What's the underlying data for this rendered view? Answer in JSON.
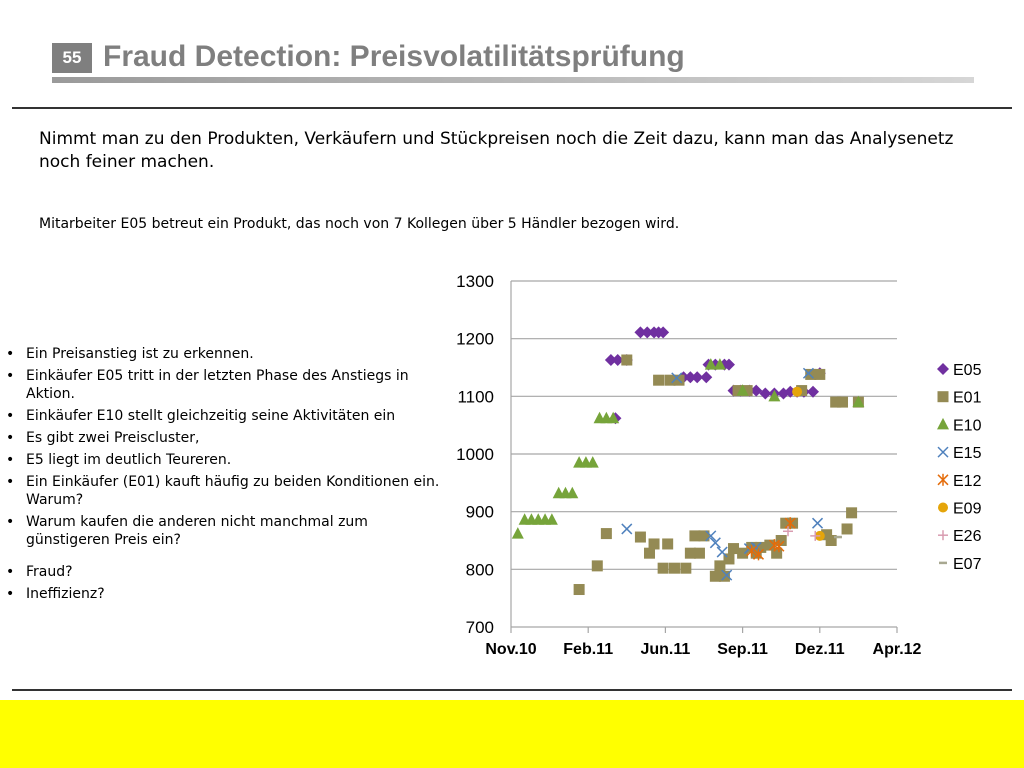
{
  "header": {
    "page_number": "55",
    "title": "Fraud Detection: Preisvolatilitätsprüfung"
  },
  "intro": "Nimmt man zu den Produkten, Verkäufern und Stückpreisen noch die Zeit dazu, kann man das Analysenetz noch feiner machen.",
  "subtext": "Mitarbeiter E05 betreut ein Produkt, das noch von 7 Kollegen über 5 Händler bezogen wird.",
  "bullets": [
    "Ein Preisanstieg ist zu erkennen.",
    "Einkäufer E05 tritt in der letzten Phase des Anstiegs in Aktion.",
    "Einkäufer E10 stellt gleichzeitig seine Aktivitäten ein",
    "Es gibt zwei Preiscluster,",
    "E5 liegt im deutlich Teureren.",
    "Ein Einkäufer (E01) kauft häufig zu beiden Konditionen ein. Warum?",
    "Warum kaufen die anderen nicht manchmal zum günstigeren Preis ein?",
    "Fraud?",
    "Ineffizienz?"
  ],
  "chart_data": {
    "type": "scatter",
    "x_unit": "months since Nov.10",
    "ylim": [
      700,
      1300
    ],
    "yticks": [
      "700",
      "800",
      "900",
      "1000",
      "1100",
      "1200",
      "1300"
    ],
    "xlim": [
      0,
      17
    ],
    "xtick_labels": [
      "Nov.10",
      "Feb.11",
      "Jun.11",
      "Sep.11",
      "Dez.11",
      "Apr.12"
    ],
    "grid": true,
    "legend_position": "right",
    "series": [
      {
        "name": "E05",
        "marker": "diamond",
        "color": "#7030a0",
        "points": [
          [
            4.6,
            1062
          ],
          [
            4.4,
            1163
          ],
          [
            4.7,
            1163
          ],
          [
            5.1,
            1163
          ],
          [
            5.7,
            1211
          ],
          [
            6.0,
            1211
          ],
          [
            6.3,
            1211
          ],
          [
            6.5,
            1211
          ],
          [
            6.7,
            1211
          ],
          [
            7.6,
            1133
          ],
          [
            7.9,
            1133
          ],
          [
            8.2,
            1133
          ],
          [
            8.6,
            1133
          ],
          [
            8.7,
            1155
          ],
          [
            9.0,
            1155
          ],
          [
            9.4,
            1155
          ],
          [
            9.6,
            1155
          ],
          [
            9.8,
            1110
          ],
          [
            10.1,
            1110
          ],
          [
            10.5,
            1110
          ],
          [
            10.8,
            1110
          ],
          [
            11.2,
            1105
          ],
          [
            11.6,
            1105
          ],
          [
            12.0,
            1105
          ],
          [
            12.3,
            1108
          ],
          [
            12.6,
            1108
          ],
          [
            12.9,
            1108
          ],
          [
            13.3,
            1108
          ],
          [
            13.6,
            1140
          ]
        ]
      },
      {
        "name": "E01",
        "marker": "square",
        "color": "#948a54",
        "points": [
          [
            3.0,
            765
          ],
          [
            3.8,
            806
          ],
          [
            4.2,
            862
          ],
          [
            5.1,
            1163
          ],
          [
            5.7,
            856
          ],
          [
            6.1,
            828
          ],
          [
            6.3,
            844
          ],
          [
            6.5,
            1128
          ],
          [
            6.7,
            802
          ],
          [
            6.9,
            844
          ],
          [
            7.0,
            1128
          ],
          [
            7.2,
            802
          ],
          [
            7.4,
            1128
          ],
          [
            7.7,
            802
          ],
          [
            7.9,
            828
          ],
          [
            8.1,
            858
          ],
          [
            8.3,
            828
          ],
          [
            8.5,
            858
          ],
          [
            9.0,
            788
          ],
          [
            9.2,
            806
          ],
          [
            9.4,
            788
          ],
          [
            9.6,
            818
          ],
          [
            9.8,
            836
          ],
          [
            10.0,
            1110
          ],
          [
            10.2,
            828
          ],
          [
            10.4,
            1110
          ],
          [
            10.6,
            838
          ],
          [
            10.8,
            828
          ],
          [
            11.0,
            838
          ],
          [
            11.4,
            842
          ],
          [
            11.7,
            828
          ],
          [
            11.9,
            850
          ],
          [
            12.1,
            880
          ],
          [
            12.4,
            880
          ],
          [
            12.8,
            1110
          ],
          [
            13.2,
            1138
          ],
          [
            13.6,
            1138
          ],
          [
            13.9,
            860
          ],
          [
            14.1,
            850
          ],
          [
            14.3,
            1090
          ],
          [
            14.6,
            1090
          ],
          [
            14.8,
            870
          ],
          [
            15.0,
            898
          ],
          [
            15.3,
            1090
          ]
        ]
      },
      {
        "name": "E10",
        "marker": "triangle",
        "color": "#76a43a",
        "points": [
          [
            0.3,
            862
          ],
          [
            0.6,
            886
          ],
          [
            0.9,
            886
          ],
          [
            1.2,
            886
          ],
          [
            1.5,
            886
          ],
          [
            1.8,
            886
          ],
          [
            2.1,
            932
          ],
          [
            2.4,
            932
          ],
          [
            2.7,
            932
          ],
          [
            3.0,
            985
          ],
          [
            3.3,
            985
          ],
          [
            3.6,
            985
          ],
          [
            3.9,
            1062
          ],
          [
            4.2,
            1062
          ],
          [
            4.5,
            1062
          ],
          [
            8.8,
            1155
          ],
          [
            9.2,
            1155
          ],
          [
            10.2,
            1110
          ],
          [
            11.6,
            1100
          ],
          [
            15.3,
            1090
          ]
        ]
      },
      {
        "name": "E15",
        "marker": "x",
        "color": "#4f81bd",
        "points": [
          [
            5.1,
            870
          ],
          [
            7.3,
            1132
          ],
          [
            8.8,
            858
          ],
          [
            9.0,
            846
          ],
          [
            9.3,
            830
          ],
          [
            9.5,
            790
          ],
          [
            10.5,
            836
          ],
          [
            10.8,
            838
          ],
          [
            13.1,
            1140
          ],
          [
            13.5,
            880
          ]
        ]
      },
      {
        "name": "E12",
        "marker": "asterisk",
        "color": "#e46c0a",
        "points": [
          [
            10.6,
            832
          ],
          [
            10.9,
            826
          ],
          [
            11.6,
            842
          ],
          [
            11.8,
            840
          ],
          [
            12.3,
            880
          ]
        ]
      },
      {
        "name": "E09",
        "marker": "circle",
        "color": "#e5a50a",
        "points": [
          [
            12.6,
            1108
          ],
          [
            13.6,
            858
          ]
        ]
      },
      {
        "name": "E26",
        "marker": "plus",
        "color": "#d99cb0",
        "points": [
          [
            12.2,
            866
          ],
          [
            13.4,
            858
          ]
        ]
      },
      {
        "name": "E07",
        "marker": "dash",
        "color": "#a8a891",
        "points": [
          [
            14.4,
            856
          ]
        ]
      }
    ]
  }
}
